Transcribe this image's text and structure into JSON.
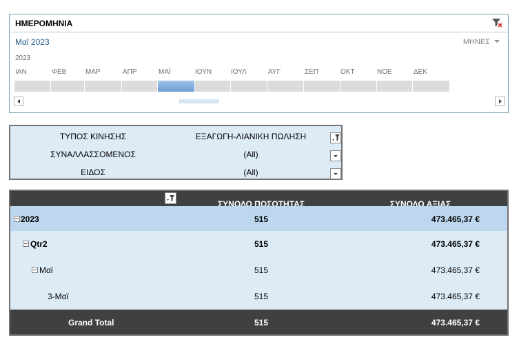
{
  "timeline": {
    "title": "ΗΜΕΡΟΜΗΝΙΑ",
    "selected_range": "Μαϊ 2023",
    "time_level": "ΜΗΝΕΣ",
    "year": "2023",
    "months": [
      "ΙΑΝ",
      "ΦΕΒ",
      "ΜΑΡ",
      "ΑΠΡ",
      "ΜΑΪ",
      "ΙΟΥΝ",
      "ΙΟΥΛ",
      "ΑΥΓ",
      "ΣΕΠ",
      "ΟΚΤ",
      "ΝΟΕ",
      "ΔΕΚ"
    ],
    "selected_month_index": 4,
    "icons": {
      "clear_filter": "clear-filter-icon",
      "scroll_left": "arrow-left-icon",
      "scroll_right": "arrow-right-icon"
    }
  },
  "filters": [
    {
      "label": "ΤΥΠΟΣ ΚΙΝΗΣΗΣ",
      "value": "ΕΞΑΓΩΓΗ-ΛΙΑΝΙΚΗ ΠΩΛΗΣΗ",
      "filtered": true
    },
    {
      "label": "ΣΥΝΑΛΛΑΣΣΟΜΕΝΟΣ",
      "value": "(All)",
      "filtered": false
    },
    {
      "label": "ΕΙΔΟΣ",
      "value": "(All)",
      "filtered": false
    }
  ],
  "pivot": {
    "headers": {
      "qty": "ΣΥΝΟΛΟ ΠΟΣΟΤΗΤΑΣ",
      "value": "ΣΥΝΟΛΟ ΑΞΙΑΣ"
    },
    "rows": [
      {
        "label": "2023",
        "qty": "515",
        "value": "473.465,37 €"
      },
      {
        "label": "Qtr2",
        "qty": "515",
        "value": "473.465,37 €"
      },
      {
        "label": "Μαϊ",
        "qty": "515",
        "value": "473.465,37 €"
      },
      {
        "label": "3-Μαϊ",
        "qty": "515",
        "value": "473.465,37 €"
      }
    ],
    "grand_total": {
      "label": "Grand Total",
      "qty": "515",
      "value": "473.465,37 €"
    }
  },
  "colors": {
    "accent": "#404040",
    "selected_month": "#6e9fd2",
    "row_highlight": "#bdd7ee",
    "row_light": "#ddebf7"
  }
}
